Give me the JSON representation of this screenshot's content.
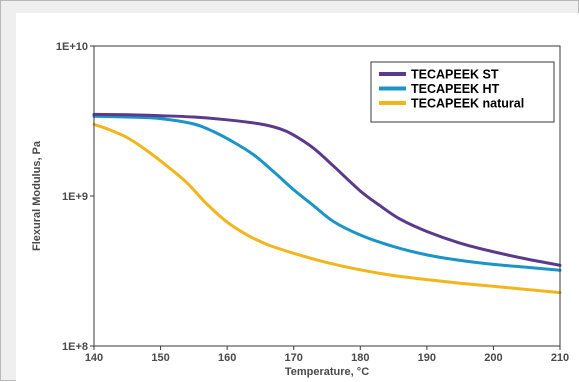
{
  "chart_data": {
    "type": "line",
    "title": "",
    "xlabel": "Temperature, °C",
    "ylabel": "Flexural Modulus, Pa",
    "xlim": [
      140,
      210
    ],
    "ylim": [
      100000000.0,
      10000000000.0
    ],
    "yscale": "log",
    "x_ticks": [
      140,
      150,
      160,
      170,
      180,
      190,
      200,
      210
    ],
    "y_ticks": [
      {
        "value": 10000000000.0,
        "label": "1E+10"
      },
      {
        "value": 1000000000.0,
        "label": "1E+9"
      },
      {
        "value": 100000000.0,
        "label": "1E+8"
      }
    ],
    "grid": false,
    "legend_position": "top-right",
    "series": [
      {
        "name": "TECAPEEK ST",
        "color": "#5b3a8c",
        "points": [
          [
            140,
            3500000000.0
          ],
          [
            145,
            3480000000.0
          ],
          [
            150,
            3430000000.0
          ],
          [
            155,
            3360000000.0
          ],
          [
            160,
            3220000000.0
          ],
          [
            165,
            3020000000.0
          ],
          [
            168,
            2800000000.0
          ],
          [
            170,
            2550000000.0
          ],
          [
            173,
            2080000000.0
          ],
          [
            176,
            1580000000.0
          ],
          [
            180,
            1080000000.0
          ],
          [
            183,
            860000000.0
          ],
          [
            186,
            700000000.0
          ],
          [
            190,
            580000000.0
          ],
          [
            195,
            485000000.0
          ],
          [
            200,
            425000000.0
          ],
          [
            205,
            380000000.0
          ],
          [
            210,
            345000000.0
          ]
        ]
      },
      {
        "name": "TECAPEEK HT",
        "color": "#1b94c7",
        "points": [
          [
            140,
            3400000000.0
          ],
          [
            145,
            3360000000.0
          ],
          [
            150,
            3280000000.0
          ],
          [
            155,
            3020000000.0
          ],
          [
            158,
            2680000000.0
          ],
          [
            161,
            2280000000.0
          ],
          [
            164,
            1880000000.0
          ],
          [
            167,
            1450000000.0
          ],
          [
            170,
            1100000000.0
          ],
          [
            173,
            860000000.0
          ],
          [
            176,
            675000000.0
          ],
          [
            180,
            550000000.0
          ],
          [
            185,
            460000000.0
          ],
          [
            190,
            405000000.0
          ],
          [
            195,
            372000000.0
          ],
          [
            200,
            350000000.0
          ],
          [
            205,
            335000000.0
          ],
          [
            210,
            320000000.0
          ]
        ]
      },
      {
        "name": "TECAPEEK natural",
        "color": "#f2b51b",
        "points": [
          [
            140,
            3000000000.0
          ],
          [
            142,
            2800000000.0
          ],
          [
            145,
            2450000000.0
          ],
          [
            148,
            2000000000.0
          ],
          [
            151,
            1580000000.0
          ],
          [
            154,
            1220000000.0
          ],
          [
            157,
            880000000.0
          ],
          [
            160,
            670000000.0
          ],
          [
            163,
            550000000.0
          ],
          [
            166,
            475000000.0
          ],
          [
            170,
            415000000.0
          ],
          [
            175,
            360000000.0
          ],
          [
            180,
            322000000.0
          ],
          [
            185,
            295000000.0
          ],
          [
            190,
            277000000.0
          ],
          [
            195,
            262000000.0
          ],
          [
            200,
            250000000.0
          ],
          [
            205,
            238000000.0
          ],
          [
            210,
            227000000.0
          ]
        ]
      }
    ]
  }
}
